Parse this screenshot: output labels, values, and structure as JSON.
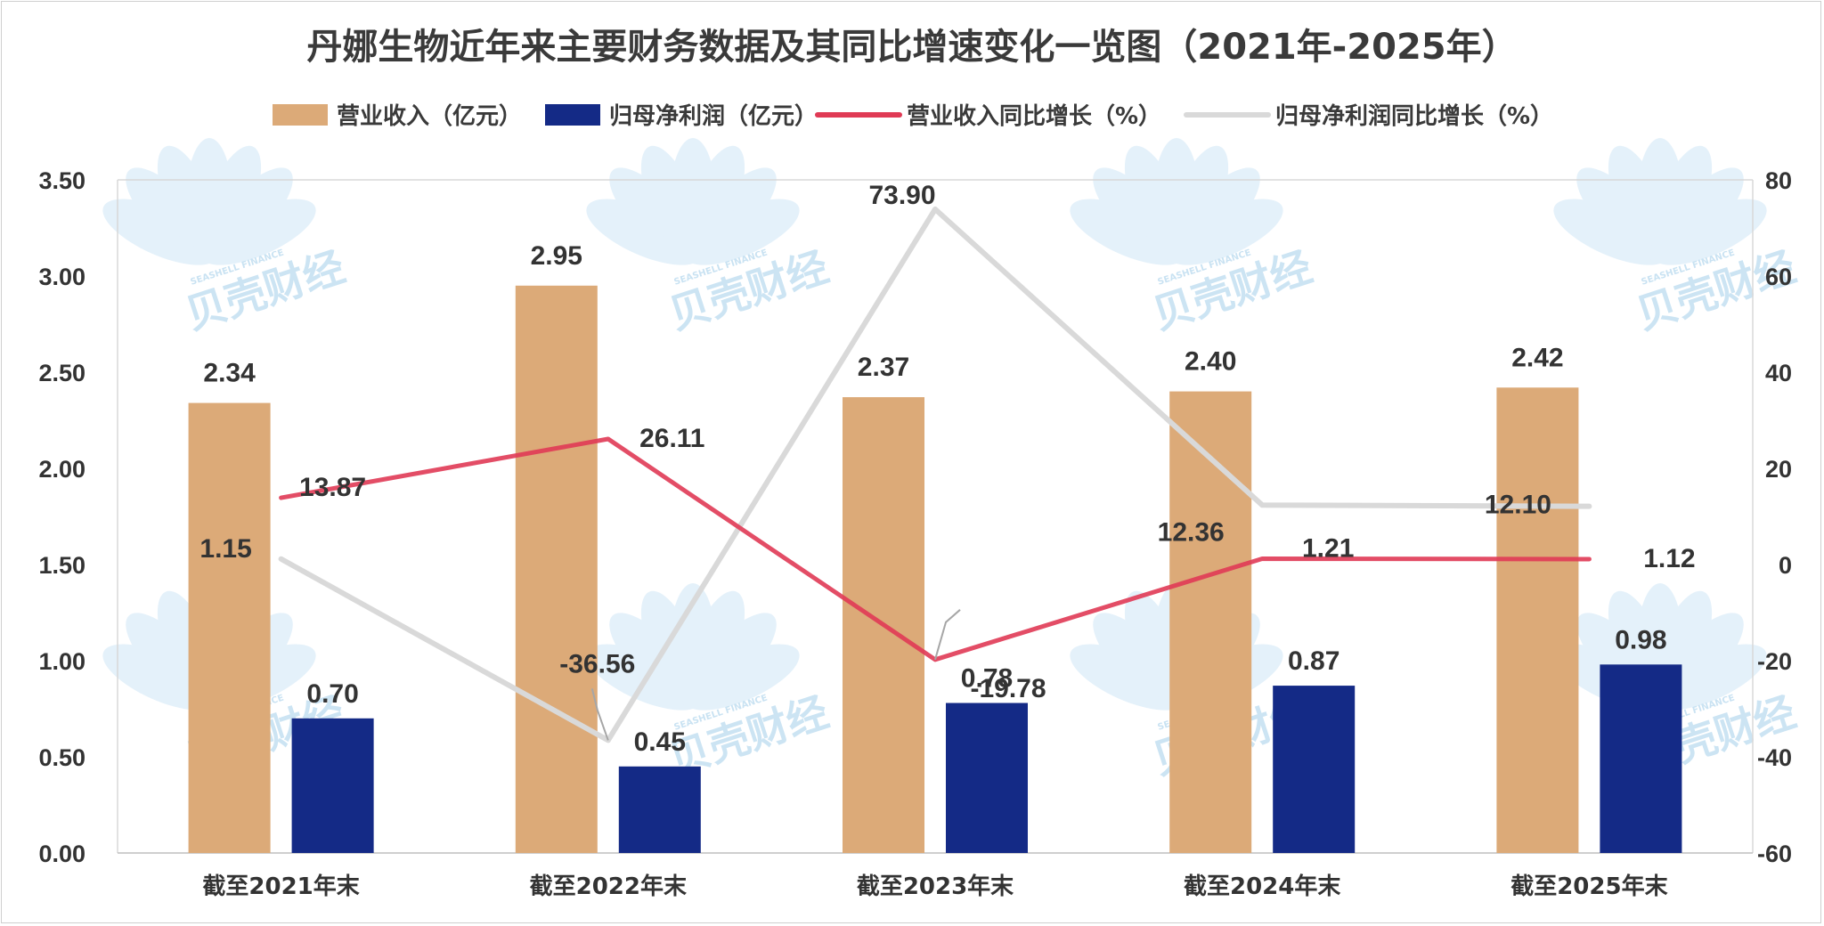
{
  "chart_data": {
    "type": "bar",
    "title": "丹娜生物近年来主要财务数据及其同比增速变化一览图（2021年-2025年）",
    "categories": [
      "截至2021年末",
      "截至2022年末",
      "截至2023年末",
      "截至2024年末",
      "截至2025年末"
    ],
    "series": [
      {
        "name": "营业收入（亿元）",
        "type": "bar",
        "axis": "left",
        "color": "#dcaa78",
        "values": [
          2.34,
          2.95,
          2.37,
          2.4,
          2.42
        ]
      },
      {
        "name": "归母净利润（亿元）",
        "type": "bar",
        "axis": "left",
        "color": "#142a86",
        "values": [
          0.7,
          0.45,
          0.78,
          0.87,
          0.98
        ]
      },
      {
        "name": "营业收入同比增长（%）",
        "type": "line",
        "axis": "right",
        "color": "#e03a55",
        "values": [
          13.87,
          26.11,
          -19.78,
          1.21,
          1.12
        ]
      },
      {
        "name": "归母净利润同比增长（%）",
        "type": "line",
        "axis": "right",
        "color": "#d9d9d9",
        "values": [
          1.15,
          -36.56,
          73.9,
          12.36,
          12.1
        ]
      }
    ],
    "left_axis": {
      "ylim": [
        0,
        3.5
      ],
      "ticks": [
        "0.00",
        "0.50",
        "1.00",
        "1.50",
        "2.00",
        "2.50",
        "3.00",
        "3.50"
      ]
    },
    "right_axis": {
      "ylim": [
        -60,
        80
      ],
      "ticks": [
        "-60",
        "-40",
        "-20",
        "0",
        "20",
        "40",
        "60",
        "80"
      ]
    },
    "bar_labels": {
      "revenue": [
        "2.34",
        "2.95",
        "2.37",
        "2.40",
        "2.42"
      ],
      "profit": [
        "0.70",
        "0.45",
        "0.78",
        "0.87",
        "0.98"
      ]
    },
    "line_labels": {
      "revenue_growth": [
        "13.87",
        "26.11",
        "-19.78",
        "1.21",
        "1.12"
      ],
      "profit_growth": [
        "1.15",
        "-36.56",
        "73.90",
        "12.36",
        "12.10"
      ]
    },
    "legend_placement": "top-center",
    "grid": false
  },
  "watermark": {
    "text": "贝壳财经",
    "subtext": "SEASHELL FINANCE"
  }
}
